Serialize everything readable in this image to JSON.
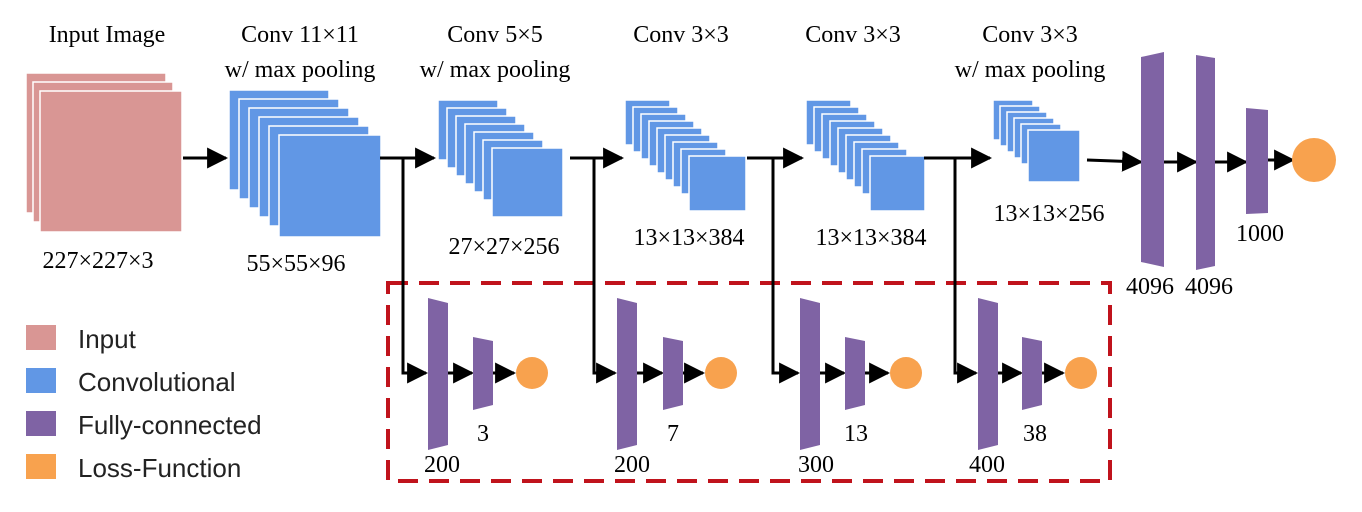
{
  "colors": {
    "input": "#d99694",
    "conv": "#6197e5",
    "fc": "#7f63a4",
    "loss": "#f8a24e",
    "dashed_box": "#c0131c",
    "arrow": "#000000"
  },
  "stages": [
    {
      "title_line1": "Input Image",
      "title_line2": "",
      "dims": "227×227×3"
    },
    {
      "title_line1": "Conv 11×11",
      "title_line2": "w/ max pooling",
      "dims": "55×55×96"
    },
    {
      "title_line1": "Conv 5×5",
      "title_line2": "w/ max pooling",
      "dims": "27×27×256"
    },
    {
      "title_line1": "Conv 3×3",
      "title_line2": "",
      "dims": "13×13×384"
    },
    {
      "title_line1": "Conv 3×3",
      "title_line2": "",
      "dims": "13×13×384"
    },
    {
      "title_line1": "Conv 3×3",
      "title_line2": "w/ max pooling",
      "dims": "13×13×256"
    }
  ],
  "fc_layers": [
    {
      "label": "4096"
    },
    {
      "label": "4096"
    },
    {
      "label": "1000"
    }
  ],
  "branches": [
    {
      "fc1": "200",
      "fc2": "3"
    },
    {
      "fc1": "200",
      "fc2": "7"
    },
    {
      "fc1": "300",
      "fc2": "13"
    },
    {
      "fc1": "400",
      "fc2": "38"
    }
  ],
  "legend": [
    {
      "label": "Input",
      "color": "#d99694"
    },
    {
      "label": "Convolutional",
      "color": "#6197e5"
    },
    {
      "label": "Fully-connected",
      "color": "#7f63a4"
    },
    {
      "label": "Loss-Function",
      "color": "#f8a24e"
    }
  ]
}
